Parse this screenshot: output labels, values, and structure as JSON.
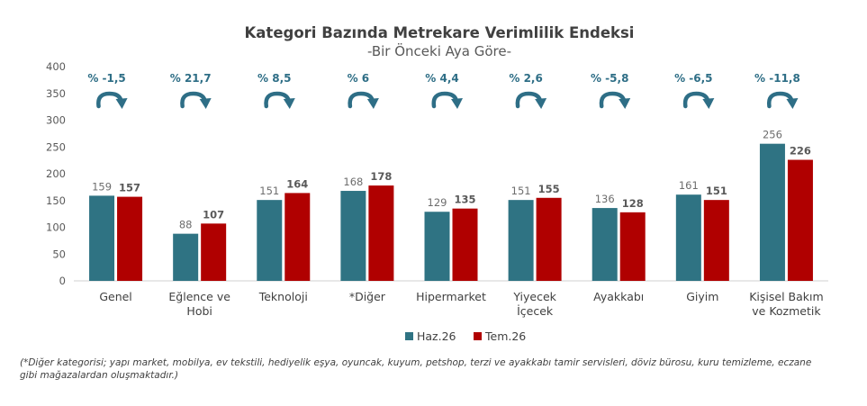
{
  "chart_data": {
    "type": "bar",
    "title": "Kategori Bazında Metrekare Verimlilik Endeksi",
    "subtitle": "-Bir Önceki Aya Göre-",
    "categories": [
      [
        "Genel"
      ],
      [
        "Eğlence ve",
        "Hobi"
      ],
      [
        "Teknoloji"
      ],
      [
        "*Diğer"
      ],
      [
        "Hipermarket"
      ],
      [
        "Yiyecek",
        "İçecek"
      ],
      [
        "Ayakkabı"
      ],
      [
        "Giyim"
      ],
      [
        "Kişisel Bakım",
        "ve Kozmetik"
      ]
    ],
    "series": [
      {
        "name": "Haz.26",
        "color": "#2f7383",
        "values": [
          159,
          88,
          151,
          168,
          129,
          151,
          136,
          161,
          256
        ]
      },
      {
        "name": "Tem.26",
        "color": "#b00000",
        "values": [
          157,
          107,
          164,
          178,
          135,
          155,
          128,
          151,
          226
        ]
      }
    ],
    "changes": [
      "% -1,5",
      "% 21,7",
      "% 8,5",
      "% 6",
      "% 4,4",
      "% 2,6",
      "% -5,8",
      "% -6,5",
      "% -11,8"
    ],
    "change_color": "#2e6e86",
    "ylim": [
      0,
      400
    ],
    "yticks": [
      0,
      50,
      100,
      150,
      200,
      250,
      300,
      350,
      400
    ],
    "grid": false,
    "legend": "bottom-center"
  },
  "footnote": "(*Diğer kategorisi; yapı market, mobilya, ev tekstili, hediyelik eşya, oyuncak, kuyum, petshop, terzi ve ayakkabı tamir servisleri, döviz bürosu, kuru temizleme, eczane gibi mağazalardan oluşmaktadır.)"
}
